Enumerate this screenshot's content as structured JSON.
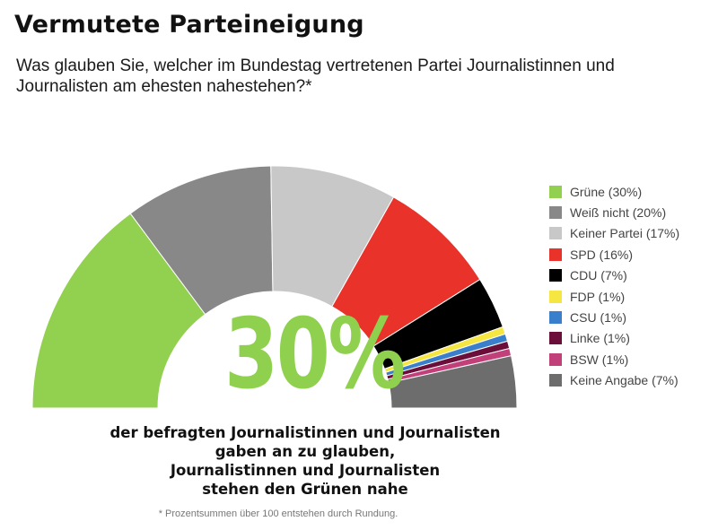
{
  "title": "Vermutete Parteineigung",
  "subtitle": "Was glauben Sie, welcher im Bundestag vertretenen Partei Journalistinnen und Journalisten am ehesten nahestehen?*",
  "highlight": {
    "value": "30%",
    "caption_lines": [
      "der befragten Journalistinnen und Journalisten",
      "gaben an zu glauben,",
      "Journalistinnen und Journalisten",
      "stehen den Grünen nahe"
    ]
  },
  "footnote": "*  Prozentsummen über 100 entstehen durch Rundung.",
  "chart_data": {
    "type": "pie",
    "variant": "half-donut",
    "legend_position": "right",
    "series": [
      {
        "label": "Grüne (30%)",
        "name": "Grüne",
        "value": 30,
        "color": "#92d050"
      },
      {
        "label": "Weiß nicht (20%)",
        "name": "Weiß nicht",
        "value": 20,
        "color": "#888888"
      },
      {
        "label": "Keiner Partei (17%)",
        "name": "Keiner Partei",
        "value": 17,
        "color": "#c8c8c8"
      },
      {
        "label": "SPD (16%)",
        "name": "SPD",
        "value": 16,
        "color": "#e8322a"
      },
      {
        "label": "CDU (7%)",
        "name": "CDU",
        "value": 7,
        "color": "#000000"
      },
      {
        "label": "FDP (1%)",
        "name": "FDP",
        "value": 1,
        "color": "#f5e642"
      },
      {
        "label": "CSU (1%)",
        "name": "CSU",
        "value": 1,
        "color": "#3a7fcc"
      },
      {
        "label": "Linke (1%)",
        "name": "Linke",
        "value": 1,
        "color": "#6b0f3a"
      },
      {
        "label": "BSW (1%)",
        "name": "BSW",
        "value": 1,
        "color": "#c2407a"
      },
      {
        "label": "Keine Angabe (7%)",
        "name": "Keine Angabe",
        "value": 7,
        "color": "#6d6d6d"
      }
    ]
  }
}
